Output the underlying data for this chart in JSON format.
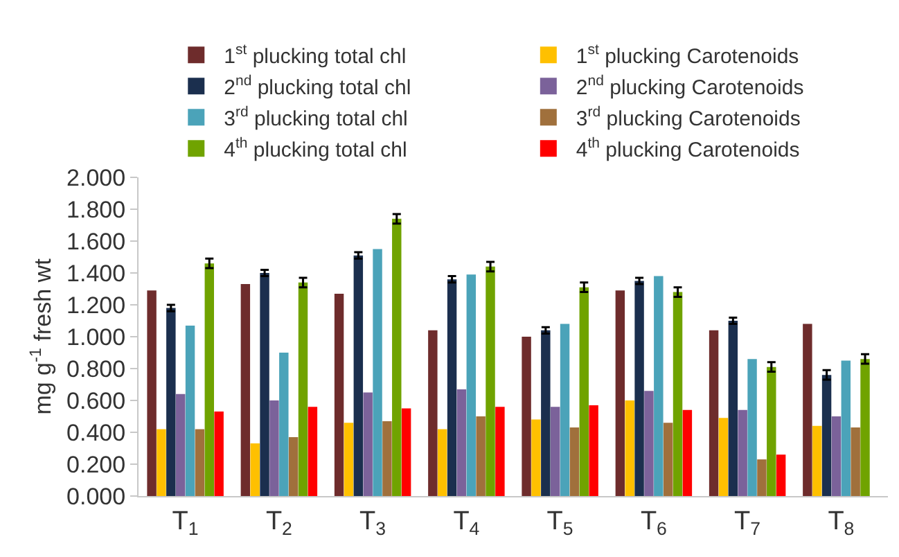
{
  "chart_data": {
    "type": "bar",
    "ylabel": "mg g$^{-1}$ fresh wt",
    "categories": [
      "T$_{1}$",
      "T$_{2}$",
      "T$_{3}$",
      "T$_{4}$",
      "T$_{5}$",
      "T$_{6}$",
      "T$_{7}$",
      "T$_{8}$"
    ],
    "series": [
      {
        "name": "1$^{st}$ plucking total chl",
        "color": "#6e2c2c",
        "values": [
          1.29,
          1.33,
          1.27,
          1.04,
          1.0,
          1.29,
          1.04,
          1.08
        ]
      },
      {
        "name": "1$^{st}$ plucking Carotenoids",
        "color": "#ffc000",
        "values": [
          0.42,
          0.33,
          0.46,
          0.42,
          0.48,
          0.6,
          0.49,
          0.44
        ]
      },
      {
        "name": "2$^{nd}$ plucking total chl",
        "color": "#1b2f4e",
        "values": [
          1.18,
          1.4,
          1.51,
          1.36,
          1.04,
          1.35,
          1.1,
          0.76
        ],
        "errors": [
          0.02,
          0.02,
          0.02,
          0.02,
          0.02,
          0.02,
          0.02,
          0.03
        ]
      },
      {
        "name": "2$^{nd}$ plucking Carotenoids",
        "color": "#7b629a",
        "values": [
          0.64,
          0.6,
          0.65,
          0.67,
          0.56,
          0.66,
          0.54,
          0.5
        ]
      },
      {
        "name": "3$^{rd}$ plucking total chl",
        "color": "#4ba3b9",
        "values": [
          1.07,
          0.9,
          1.55,
          1.39,
          1.08,
          1.38,
          0.86,
          0.85
        ]
      },
      {
        "name": "3$^{rd}$ plucking Carotenoids",
        "color": "#a0703c",
        "values": [
          0.42,
          0.37,
          0.47,
          0.5,
          0.43,
          0.46,
          0.23,
          0.43
        ]
      },
      {
        "name": "4$^{th}$ plucking total chl",
        "color": "#70a300",
        "values": [
          1.46,
          1.34,
          1.74,
          1.44,
          1.31,
          1.28,
          0.81,
          0.86
        ],
        "errors": [
          0.03,
          0.03,
          0.03,
          0.03,
          0.03,
          0.03,
          0.03,
          0.03
        ]
      },
      {
        "name": "4$^{th}$ plucking Carotenoids",
        "color": "#ff0000",
        "values": [
          0.53,
          0.56,
          0.55,
          0.56,
          0.57,
          0.54,
          0.26,
          null
        ]
      }
    ],
    "ylim": [
      0,
      2
    ],
    "yticks": [
      {
        "value": 0,
        "label": "0.000"
      },
      {
        "value": 0.2,
        "label": "0.200"
      },
      {
        "value": 0.4,
        "label": "0.400"
      },
      {
        "value": 0.6,
        "label": "0.600"
      },
      {
        "value": 0.8,
        "label": "0.800"
      },
      {
        "value": 1,
        "label": "1.000"
      },
      {
        "value": 1.2,
        "label": "1.200"
      },
      {
        "value": 1.4,
        "label": "1.400"
      },
      {
        "value": 1.6,
        "label": "1.600"
      },
      {
        "value": 1.8,
        "label": "1.800"
      },
      {
        "value": 2,
        "label": "2.000"
      }
    ],
    "grid": false,
    "legend": "top"
  }
}
